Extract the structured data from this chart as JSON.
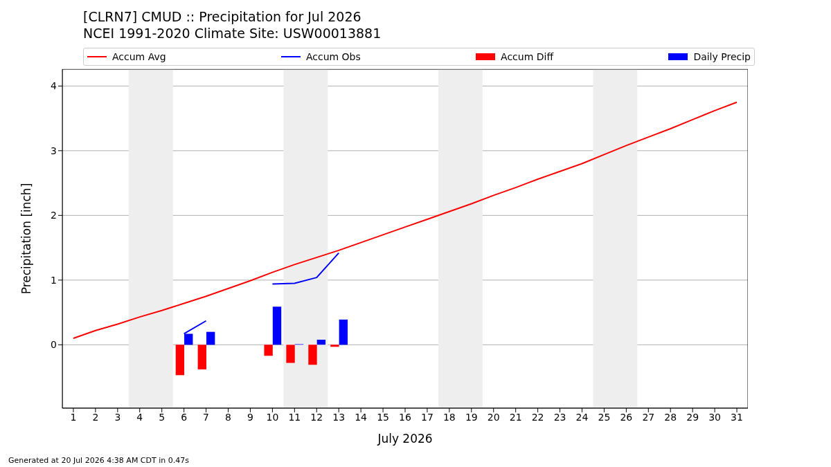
{
  "chart_data": {
    "type": "bar",
    "title": "[CLRN7] CMUD :: Precipitation for Jul 2026",
    "subtitle": "NCEI 1991-2020 Climate Site: USW00013881",
    "xlabel": "July 2026",
    "ylabel": "Precipitation [inch]",
    "x": [
      1,
      2,
      3,
      4,
      5,
      6,
      7,
      8,
      9,
      10,
      11,
      12,
      13,
      14,
      15,
      16,
      17,
      18,
      19,
      20,
      21,
      22,
      23,
      24,
      25,
      26,
      27,
      28,
      29,
      30,
      31
    ],
    "series": [
      {
        "name": "Accum Avg",
        "type": "line",
        "color": "#ff0000",
        "values": [
          0.1,
          0.22,
          0.32,
          0.43,
          0.53,
          0.64,
          0.75,
          0.87,
          0.99,
          1.12,
          1.24,
          1.35,
          1.46,
          1.58,
          1.7,
          1.82,
          1.94,
          2.06,
          2.18,
          2.31,
          2.43,
          2.56,
          2.68,
          2.8,
          2.94,
          3.08,
          3.21,
          3.34,
          3.48,
          3.62,
          3.75
        ]
      },
      {
        "name": "Accum Obs",
        "type": "line",
        "color": "#0000ff",
        "values": [
          null,
          null,
          null,
          null,
          null,
          0.17,
          0.37,
          null,
          null,
          0.94,
          0.95,
          1.04,
          1.42,
          null,
          null,
          null,
          null,
          null,
          null,
          null,
          null,
          null,
          null,
          null,
          null,
          null,
          null,
          null,
          null,
          null,
          null
        ]
      },
      {
        "name": "Accum Diff",
        "color": "#ff0000",
        "values": [
          null,
          null,
          null,
          null,
          null,
          -0.47,
          -0.38,
          null,
          null,
          -0.17,
          -0.28,
          -0.31,
          -0.03,
          null,
          null,
          null,
          null,
          null,
          null,
          null,
          null,
          null,
          null,
          null,
          null,
          null,
          null,
          null,
          null,
          null,
          null
        ]
      },
      {
        "name": "Daily Precip",
        "color": "#0000ff",
        "values": [
          null,
          null,
          null,
          null,
          null,
          0.17,
          0.2,
          null,
          null,
          0.59,
          0.01,
          0.08,
          0.39,
          null,
          null,
          null,
          null,
          null,
          null,
          null,
          null,
          null,
          null,
          null,
          null,
          null,
          null,
          null,
          null,
          null,
          null
        ]
      }
    ],
    "xlim": [
      0.5,
      31.5
    ],
    "xticks": [
      1,
      2,
      3,
      4,
      5,
      6,
      7,
      8,
      9,
      10,
      11,
      12,
      13,
      14,
      15,
      16,
      17,
      18,
      19,
      20,
      21,
      22,
      23,
      24,
      25,
      26,
      27,
      28,
      29,
      30,
      31
    ],
    "ylim": [
      -0.98,
      4.26
    ],
    "yticks": [
      0,
      1,
      2,
      3,
      4
    ],
    "bands": [
      {
        "axis": "x",
        "from": 3.5,
        "to": 5.5,
        "color": "#eeeeee"
      },
      {
        "axis": "x",
        "from": 10.5,
        "to": 12.5,
        "color": "#eeeeee"
      },
      {
        "axis": "x",
        "from": 17.5,
        "to": 19.5,
        "color": "#eeeeee"
      },
      {
        "axis": "x",
        "from": 24.5,
        "to": 26.5,
        "color": "#eeeeee"
      }
    ],
    "grid": "y",
    "legend": "top",
    "annotations": [
      "Generated at 20 Jul 2026 4:38 AM CDT in 0.47s"
    ]
  }
}
